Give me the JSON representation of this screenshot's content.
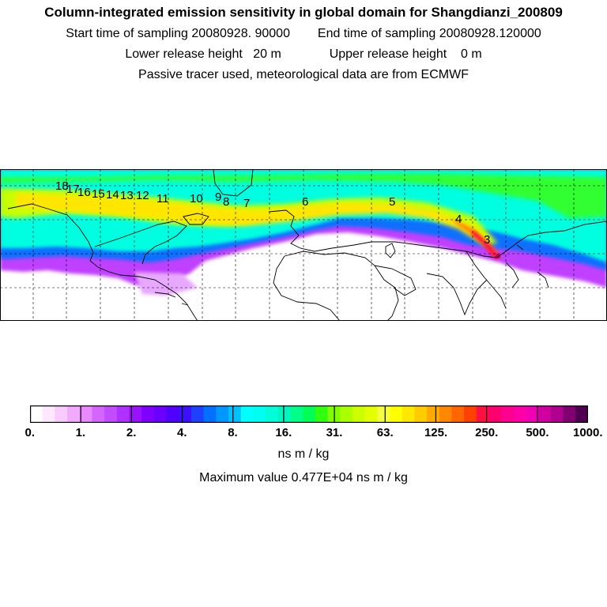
{
  "title": "Column-integrated emission sensitivity in global domain for Shangdianzi_200809",
  "sampling": {
    "start_label": "Start time of sampling",
    "start_value": "20080928. 90000",
    "end_label": "End time of sampling",
    "end_value": "20080928.120000"
  },
  "release": {
    "lower_label": "Lower release height",
    "lower_value": "20 m",
    "upper_label": "Upper release height",
    "upper_value": "0 m"
  },
  "note": "Passive tracer used, meteorological data are from ECMWF",
  "map": {
    "trajectory_labels": [
      "18",
      "17",
      "16",
      "15",
      "14",
      "13",
      "12",
      "11",
      "10",
      "9",
      "8",
      "7",
      "6",
      "5",
      "4",
      "3"
    ],
    "colors": {
      "land_outline": "#000000",
      "grid": "#000000",
      "plume_low": "#b400ff",
      "plume_mid": "#00ffdd",
      "plume_high": "#ffee00",
      "plume_peak": "#ff0033"
    }
  },
  "colorbar": {
    "ticks": [
      "0.",
      "1.",
      "2.",
      "4.",
      "8.",
      "16.",
      "31.",
      "63.",
      "125.",
      "250.",
      "500.",
      "1000."
    ],
    "colors": [
      "#ffffff",
      "#fde8ff",
      "#f8ccff",
      "#f2aaff",
      "#ea88ff",
      "#d466ff",
      "#c44cff",
      "#b030ff",
      "#9a10ff",
      "#8000ff",
      "#6a00ff",
      "#5000ff",
      "#3c10ff",
      "#1e40ff",
      "#0070ff",
      "#0098ff",
      "#00c0ff",
      "#00ffff",
      "#00fff0",
      "#00ffd8",
      "#00f5c0",
      "#00ff88",
      "#00ff55",
      "#30ff10",
      "#80ff00",
      "#aaff00",
      "#ccff00",
      "#e4ff00",
      "#f4ff40",
      "#ffff00",
      "#ffe800",
      "#ffcc00",
      "#ffaa00",
      "#ff8800",
      "#ff6600",
      "#ff4000",
      "#ff1040",
      "#ff0070",
      "#ff0090",
      "#ff00a8",
      "#f000b4",
      "#d000a0",
      "#b00090",
      "#800070",
      "#500050"
    ]
  },
  "unit": "ns m / kg",
  "max_value": "Maximum value  0.477E+04 ns m / kg"
}
